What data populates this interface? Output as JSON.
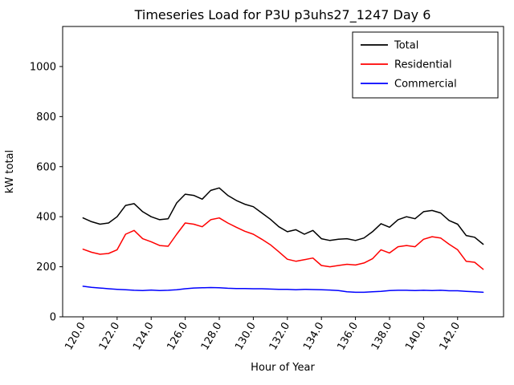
{
  "window": {
    "background": "#ffffff"
  },
  "chart_data": {
    "type": "line",
    "title": "Timeseries Load for P3U p3uhs27_1247  Day 6",
    "xlabel": "Hour of Year",
    "ylabel": "kW total",
    "xlim": [
      118.8,
      144.7
    ],
    "ylim": [
      0,
      1160
    ],
    "x_ticks": [
      120,
      122,
      124,
      126,
      128,
      130,
      132,
      134,
      136,
      138,
      140,
      142
    ],
    "x_tick_labels": [
      "120.0",
      "122.0",
      "124.0",
      "126.0",
      "128.0",
      "130.0",
      "132.0",
      "134.0",
      "136.0",
      "138.0",
      "140.0",
      "142.0"
    ],
    "x_tick_rotation": 60,
    "y_ticks": [
      0,
      200,
      400,
      600,
      800,
      1000
    ],
    "y_tick_labels": [
      "0",
      "200",
      "400",
      "600",
      "800",
      "1000"
    ],
    "grid": false,
    "legend_position": "upper right",
    "axis_color": "#000000",
    "x": [
      120.0,
      120.5,
      121.0,
      121.5,
      122.0,
      122.5,
      123.0,
      123.5,
      124.0,
      124.5,
      125.0,
      125.5,
      126.0,
      126.5,
      127.0,
      127.5,
      128.0,
      128.5,
      129.0,
      129.5,
      130.0,
      130.5,
      131.0,
      131.5,
      132.0,
      132.5,
      133.0,
      133.5,
      134.0,
      134.5,
      135.0,
      135.5,
      136.0,
      136.5,
      137.0,
      137.5,
      138.0,
      138.5,
      139.0,
      139.5,
      140.0,
      140.5,
      141.0,
      141.5,
      142.0,
      142.5,
      143.0,
      143.5
    ],
    "series": [
      {
        "name": "Total",
        "color": "#000000",
        "values": [
          395,
          380,
          370,
          375,
          400,
          445,
          452,
          420,
          400,
          388,
          392,
          455,
          490,
          485,
          470,
          505,
          515,
          485,
          465,
          450,
          440,
          415,
          390,
          360,
          340,
          348,
          330,
          345,
          312,
          305,
          310,
          312,
          305,
          315,
          340,
          372,
          358,
          388,
          400,
          392,
          420,
          425,
          415,
          385,
          370,
          325,
          318,
          290
        ]
      },
      {
        "name": "Residential",
        "color": "#ff0000",
        "values": [
          270,
          258,
          250,
          253,
          268,
          330,
          345,
          312,
          300,
          285,
          282,
          330,
          375,
          370,
          360,
          388,
          395,
          375,
          358,
          342,
          330,
          310,
          288,
          260,
          230,
          222,
          228,
          235,
          205,
          200,
          205,
          210,
          207,
          215,
          232,
          268,
          255,
          280,
          285,
          280,
          310,
          320,
          315,
          290,
          268,
          222,
          218,
          190
        ]
      },
      {
        "name": "Commercial",
        "color": "#0000ff",
        "values": [
          122,
          118,
          115,
          112,
          110,
          108,
          106,
          105,
          107,
          105,
          106,
          108,
          112,
          115,
          116,
          117,
          116,
          114,
          113,
          113,
          112,
          112,
          111,
          110,
          110,
          108,
          110,
          109,
          108,
          107,
          105,
          100,
          98,
          98,
          100,
          102,
          105,
          106,
          106,
          105,
          106,
          105,
          106,
          104,
          104,
          102,
          100,
          98
        ]
      }
    ]
  }
}
